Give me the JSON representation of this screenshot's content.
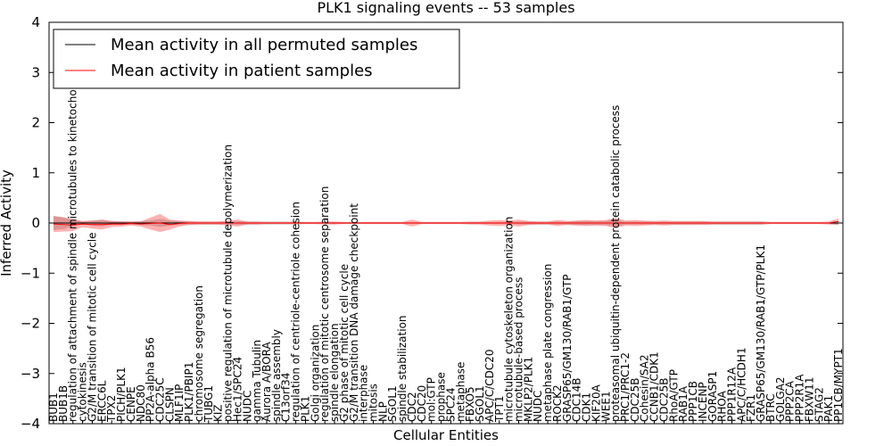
{
  "chart_data": {
    "type": "line",
    "title": "PLK1 signaling events -- 53 samples",
    "xlabel": "Cellular Entities",
    "ylabel": "Inferred Activity",
    "ylim": [
      -4,
      4
    ],
    "yticks": [
      -4,
      -3,
      -2,
      -1,
      0,
      1,
      2,
      3,
      4
    ],
    "legend_position": "top-left",
    "categories": [
      "BUB1",
      "BUB1B",
      "regulation of attachment of spindle microtubules to kinetochore",
      "cytokinesis",
      "G2/M transition of mitotic cell cycle",
      "ERCC6L",
      "TPX2",
      "PICH/PLK1",
      "CENPE",
      "NDC80",
      "PP2A-alpha B56",
      "CDC25C",
      "CLSPN",
      "MLF1IP",
      "PLK1/PBIP1",
      "chromosome segregation",
      "TUBG1",
      "KIZ",
      "positive regulation of microtubule depolymerization",
      "Hec1/SPC24",
      "NUDC",
      "gamma Tubulin",
      "Aurora A/BORA",
      "spindle assembly",
      "C13orf34",
      "regulation of centriole-centriole cohesion",
      "PLK1",
      "Golgi organization",
      "regulation of mitotic centrosome separation",
      "spindle elongation",
      "G2 phase of mitotic cell cycle",
      "G2/M transition DNA damage checkpoint",
      "interphase",
      "mitosis",
      "NLP",
      "SGOL1",
      "spindle stabilization",
      "CDC2",
      "CDC20",
      "mol:GTP",
      "prophase",
      "SPC24",
      "metaphase",
      "FBXO5",
      "SGOL1",
      "APC/C/CDC20",
      "TPT1",
      "microtubule cytoskeleton organization",
      "microtubule-based process",
      "MKLP2/PLK1",
      "NUDC",
      "metaphase plate congression",
      "ROCK2",
      "GRASP65/GM130/RAB1/GTP",
      "CDC14B",
      "CDK1",
      "KIF20A",
      "WEE1",
      "proteasomal ubiquitin-dependent protein catabolic process",
      "PRC1/PRC1-2",
      "CDC25B",
      "Cohesin/SA2",
      "CCNB1/CDK1",
      "CDC25B",
      "RhoA/GTP",
      "RAB1A",
      "PPP1CB",
      "INCENP",
      "GORASP1",
      "RHOA",
      "PPP1R12A",
      "APC/C/HCDH1",
      "FZR1",
      "GRASP65/GM130/RAB1/GTP/PLK1",
      "BTRC",
      "GOLGA2",
      "PPP2CA",
      "PPP2R1A",
      "FBXW11",
      "STAG2",
      "PAK1",
      "PP1CB/MYPT1"
    ],
    "series": [
      {
        "name": "Mean activity in all permuted samples",
        "color": "#000000",
        "values": [
          0,
          0,
          0,
          0,
          0,
          0,
          0,
          0,
          0,
          0,
          0,
          0,
          0,
          0,
          0,
          0,
          0,
          0,
          0,
          0,
          0,
          0,
          0,
          0,
          0,
          0,
          0,
          0,
          0,
          0,
          0,
          0,
          0,
          0,
          0,
          0,
          0,
          0,
          0,
          0,
          0,
          0,
          0,
          0,
          0,
          0,
          0,
          0,
          0,
          0,
          0,
          0,
          0,
          0,
          0,
          0,
          0,
          0,
          0,
          0,
          0,
          0,
          0,
          0,
          0,
          0,
          0,
          0,
          0,
          0,
          0,
          0,
          0,
          0,
          0,
          0,
          0,
          0,
          0,
          0,
          0,
          0
        ],
        "band": [
          0.14,
          0.12,
          0.06,
          0.03,
          0.05,
          0.06,
          0.04,
          0.04,
          0.03,
          0.04,
          0.05,
          0.08,
          0.05,
          0.04,
          0.03,
          0.03,
          0.03,
          0.03,
          0.03,
          0.04,
          0.03,
          0.03,
          0.03,
          0.03,
          0.03,
          0.03,
          0.02,
          0.02,
          0.02,
          0.02,
          0.02,
          0.02,
          0.02,
          0.02,
          0.02,
          0.02,
          0.02,
          0.02,
          0.02,
          0.02,
          0.02,
          0.02,
          0.02,
          0.02,
          0.02,
          0.02,
          0.02,
          0.02,
          0.03,
          0.03,
          0.03,
          0.03,
          0.03,
          0.03,
          0.04,
          0.04,
          0.04,
          0.04,
          0.07,
          0.03,
          0.03,
          0.03,
          0.03,
          0.03,
          0.03,
          0.03,
          0.03,
          0.03,
          0.03,
          0.03,
          0.03,
          0.03,
          0.03,
          0.03,
          0.02,
          0.02,
          0.02,
          0.02,
          0.02,
          0.02,
          0.02,
          0.04
        ]
      },
      {
        "name": "Mean activity in patient samples",
        "color": "#ff0000",
        "values": [
          -0.02,
          -0.03,
          -0.04,
          -0.02,
          -0.03,
          -0.03,
          -0.02,
          -0.02,
          -0.01,
          -0.02,
          -0.01,
          0.0,
          -0.03,
          -0.01,
          0.0,
          0.0,
          0.0,
          0.0,
          0.0,
          0.0,
          0.0,
          0.0,
          0.0,
          0.0,
          0.0,
          0.0,
          0.0,
          0.0,
          0.0,
          0.0,
          0.0,
          0.0,
          0.0,
          0.0,
          0.0,
          0.0,
          0.0,
          0.0,
          0.0,
          0.0,
          0.0,
          0.0,
          0.0,
          0.0,
          0.0,
          0.0,
          0.0,
          0.0,
          0.0,
          0.0,
          0.0,
          0.0,
          0.0,
          0.0,
          0.0,
          0.0,
          0.0,
          0.0,
          0.0,
          0.0,
          0.0,
          0.0,
          0.0,
          0.0,
          0.0,
          0.0,
          0.0,
          0.0,
          0.0,
          0.0,
          0.0,
          0.0,
          0.0,
          0.0,
          0.0,
          0.0,
          0.0,
          0.0,
          0.0,
          0.0,
          0.0,
          0.03
        ],
        "band": [
          0.16,
          0.14,
          0.12,
          0.06,
          0.08,
          0.1,
          0.06,
          0.05,
          0.04,
          0.05,
          0.12,
          0.18,
          0.1,
          0.06,
          0.04,
          0.03,
          0.03,
          0.03,
          0.05,
          0.07,
          0.03,
          0.03,
          0.02,
          0.02,
          0.02,
          0.02,
          0.02,
          0.02,
          0.03,
          0.03,
          0.02,
          0.02,
          0.02,
          0.02,
          0.02,
          0.02,
          0.02,
          0.07,
          0.02,
          0.02,
          0.02,
          0.02,
          0.02,
          0.03,
          0.03,
          0.05,
          0.06,
          0.05,
          0.07,
          0.04,
          0.03,
          0.03,
          0.06,
          0.04,
          0.05,
          0.06,
          0.05,
          0.06,
          0.1,
          0.05,
          0.06,
          0.05,
          0.04,
          0.05,
          0.04,
          0.04,
          0.04,
          0.04,
          0.03,
          0.03,
          0.03,
          0.03,
          0.03,
          0.03,
          0.02,
          0.02,
          0.02,
          0.02,
          0.02,
          0.02,
          0.03,
          0.06
        ]
      }
    ]
  }
}
